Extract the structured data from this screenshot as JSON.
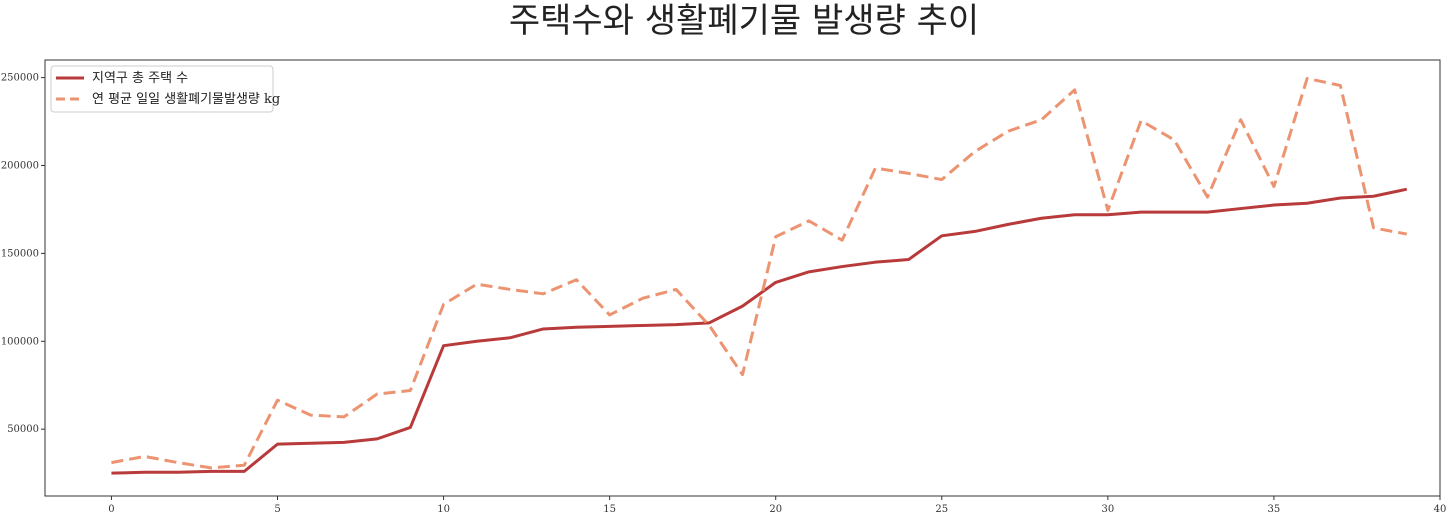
{
  "chart_data": {
    "type": "line",
    "title": "주택수와 생활폐기물 발생량 추이",
    "xlabel": "",
    "ylabel": "",
    "xlim": [
      -2,
      40
    ],
    "ylim": [
      12000,
      260000
    ],
    "x_ticks": [
      0,
      5,
      10,
      15,
      20,
      25,
      30,
      35,
      40
    ],
    "y_ticks": [
      50000,
      100000,
      150000,
      200000,
      250000
    ],
    "grid": false,
    "legend_position": "top-left",
    "x": [
      0,
      1,
      2,
      3,
      4,
      5,
      6,
      7,
      8,
      9,
      10,
      11,
      12,
      13,
      14,
      15,
      16,
      17,
      18,
      19,
      20,
      21,
      22,
      23,
      24,
      25,
      26,
      27,
      28,
      29,
      30,
      31,
      32,
      33,
      34,
      35,
      36,
      37,
      38,
      39
    ],
    "series": [
      {
        "name": "지역구 총 주택 수",
        "color": "#b83a3a",
        "style": "solid",
        "values": [
          25000,
          25500,
          25500,
          26000,
          26000,
          41500,
          42000,
          42500,
          44500,
          51000,
          97500,
          100000,
          102000,
          107000,
          108000,
          108500,
          109000,
          109500,
          110500,
          120000,
          133500,
          139500,
          142500,
          145000,
          146500,
          160000,
          162500,
          166500,
          170000,
          172000,
          172000,
          173500,
          173500,
          173500,
          175500,
          177500,
          178500,
          181500,
          182500,
          186500
        ]
      },
      {
        "name": "연 평균 일일 생활폐기물발생량 kg",
        "color": "#ec9471",
        "style": "dashed",
        "values": [
          31000,
          34500,
          31000,
          28000,
          29500,
          66500,
          58000,
          57000,
          70000,
          72000,
          121000,
          132500,
          129500,
          127000,
          135000,
          115000,
          124500,
          129500,
          109000,
          81000,
          159500,
          168500,
          157500,
          198500,
          195500,
          192000,
          208000,
          219500,
          226000,
          243000,
          174500,
          225500,
          214500,
          182000,
          226000,
          188000,
          249500,
          245500,
          164500,
          161000
        ]
      }
    ]
  }
}
